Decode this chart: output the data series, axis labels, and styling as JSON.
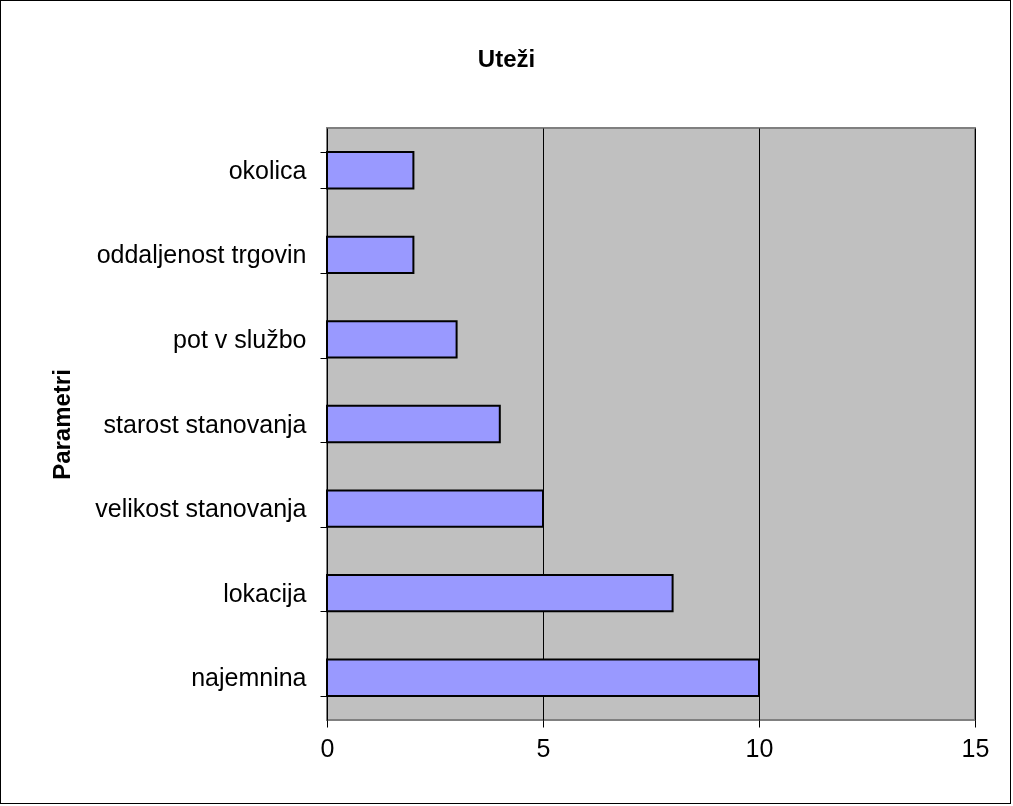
{
  "chart_data": {
    "type": "bar",
    "orientation": "horizontal",
    "title": "Uteži",
    "ylabel": "Parametri",
    "categories": [
      "okolica",
      "oddaljenost trgovin",
      "pot v službo",
      "starost stanovanja",
      "velikost stanovanja",
      "lokacija",
      "najemnina"
    ],
    "values": [
      2,
      2,
      3,
      4,
      5,
      8,
      10
    ],
    "color": "#9999ff",
    "xlim": [
      0,
      15
    ],
    "xticks": [
      0,
      5,
      10,
      15
    ],
    "grid": "x"
  }
}
